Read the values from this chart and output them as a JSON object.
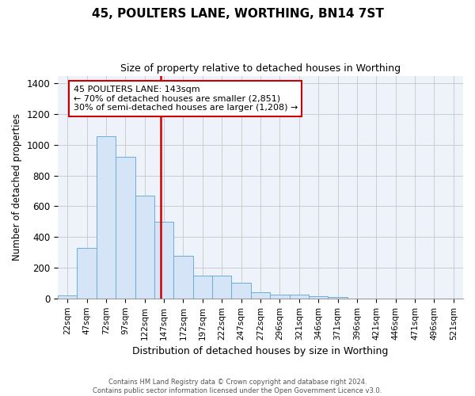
{
  "title": "45, POULTERS LANE, WORTHING, BN14 7ST",
  "subtitle": "Size of property relative to detached houses in Worthing",
  "xlabel": "Distribution of detached houses by size in Worthing",
  "ylabel": "Number of detached properties",
  "categories": [
    "22sqm",
    "47sqm",
    "72sqm",
    "97sqm",
    "122sqm",
    "147sqm",
    "172sqm",
    "197sqm",
    "222sqm",
    "247sqm",
    "272sqm",
    "296sqm",
    "321sqm",
    "346sqm",
    "371sqm",
    "396sqm",
    "421sqm",
    "446sqm",
    "471sqm",
    "496sqm",
    "521sqm"
  ],
  "values": [
    20,
    330,
    1055,
    920,
    670,
    500,
    280,
    150,
    150,
    100,
    40,
    25,
    25,
    15,
    10,
    0,
    0,
    0,
    0,
    0,
    0
  ],
  "bar_color": "#d6e4f7",
  "bar_edgecolor": "#6baed6",
  "marker_color": "#cc0000",
  "annotation_box_edgecolor": "#cc0000",
  "annotation_line1": "45 POULTERS LANE: 143sqm",
  "annotation_line2": "← 70% of detached houses are smaller (2,851)",
  "annotation_line3": "30% of semi-detached houses are larger (1,208) →",
  "red_line_x": 4.84,
  "ylim": [
    0,
    1450
  ],
  "yticks": [
    0,
    200,
    400,
    600,
    800,
    1000,
    1200,
    1400
  ],
  "grid_color": "#cccccc",
  "background_color": "#eef2fb",
  "footer_line1": "Contains HM Land Registry data © Crown copyright and database right 2024.",
  "footer_line2": "Contains public sector information licensed under the Open Government Licence v3.0."
}
